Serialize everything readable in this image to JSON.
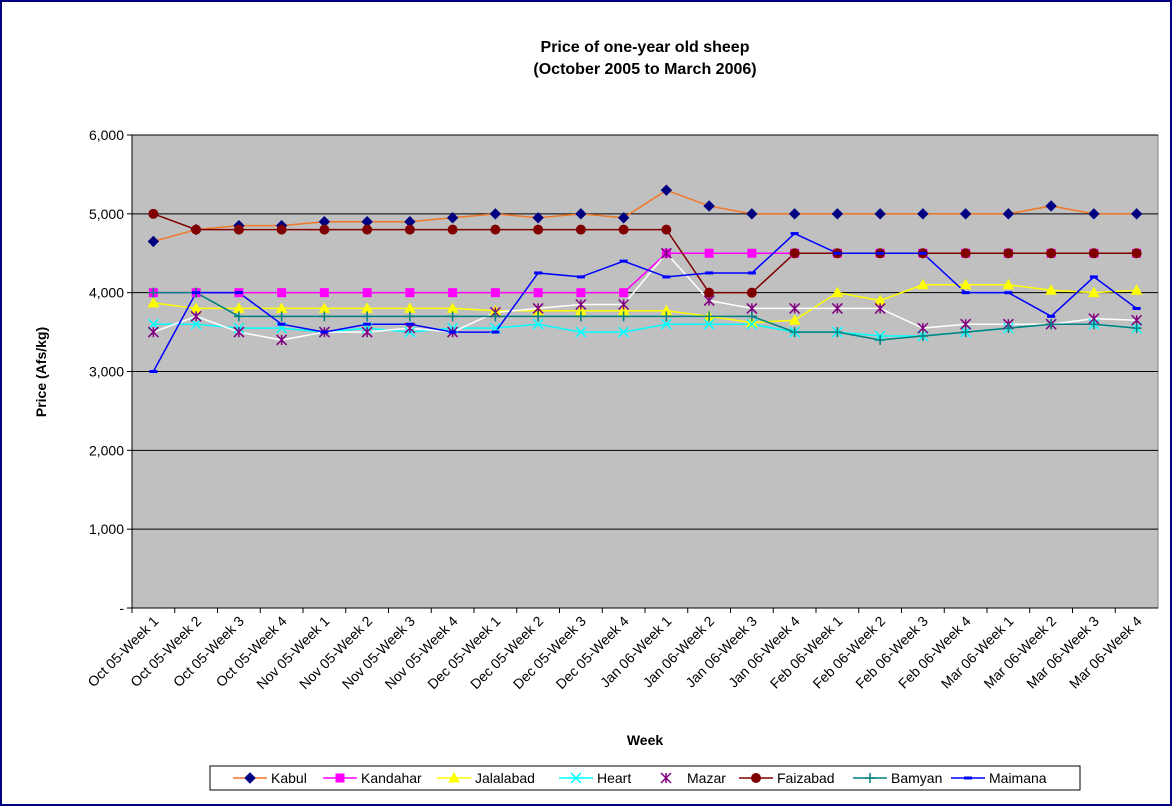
{
  "chart_data": {
    "type": "line",
    "title": "Price of one-year old sheep",
    "subtitle": "(October 2005 to March 2006)",
    "x_label": "Week",
    "y_label": "Price (Afs/kg)",
    "categories": [
      "Oct 05-Week 1",
      "Oct 05-Week 2",
      "Oct 05-Week 3",
      "Oct 05-Week 4",
      "Nov 05-Week 1",
      "Nov 05-Week 2",
      "Nov 05-Week 3",
      "Nov 05-Week 4",
      "Dec 05-Week 1",
      "Dec 05-Week 2",
      "Dec 05-Week 3",
      "Dec 05-Week 4",
      "Jan 06-Week 1",
      "Jan 06-Week 2",
      "Jan 06-Week 3",
      "Jan 06-Week 4",
      "Feb 06-Week 1",
      "Feb 06-Week 2",
      "Feb 06-Week 3",
      "Feb 06-Week 4",
      "Mar 06-Week 1",
      "Mar 06-Week 2",
      "Mar 06-Week 3",
      "Mar 06-Week 4"
    ],
    "series": [
      {
        "name": "Kabul",
        "color": "#f07828",
        "marker_color": "#000080",
        "marker": "diamond",
        "values": [
          4650,
          4800,
          4850,
          4850,
          4900,
          4900,
          4900,
          4950,
          5000,
          4950,
          5000,
          4950,
          5300,
          5100,
          5000,
          5000,
          5000,
          5000,
          5000,
          5000,
          5000,
          5100,
          5000,
          5000
        ]
      },
      {
        "name": "Kandahar",
        "color": "#ff00ff",
        "marker_color": "#ff00ff",
        "marker": "square",
        "values": [
          4000,
          4000,
          4000,
          4000,
          4000,
          4000,
          4000,
          4000,
          4000,
          4000,
          4000,
          4000,
          4500,
          4500,
          4500,
          4500,
          4500,
          4500,
          4500,
          4500,
          4500,
          4500,
          4500,
          4500
        ]
      },
      {
        "name": "Jalalabad",
        "color": "#ffff00",
        "marker_color": "#ffff00",
        "marker": "triangle",
        "values": [
          3870,
          3800,
          3800,
          3800,
          3800,
          3800,
          3800,
          3800,
          3770,
          3770,
          3770,
          3770,
          3770,
          3700,
          3620,
          3650,
          4000,
          3900,
          4100,
          4100,
          4100,
          4030,
          4000,
          4030
        ]
      },
      {
        "name": "Heart",
        "color": "#00ffff",
        "marker_color": "#00ffff",
        "marker": "x",
        "values": [
          3600,
          3600,
          3550,
          3550,
          3500,
          3550,
          3500,
          3550,
          3550,
          3600,
          3500,
          3500,
          3600,
          3600,
          3600,
          3500,
          3500,
          3450,
          3450,
          3500,
          3550,
          3600,
          3600,
          3550
        ]
      },
      {
        "name": "Mazar",
        "color": "#ffffff",
        "marker_color": "#800080",
        "marker": "star",
        "values": [
          3500,
          3700,
          3500,
          3400,
          3500,
          3500,
          3550,
          3500,
          3750,
          3800,
          3850,
          3850,
          4500,
          3900,
          3800,
          3800,
          3800,
          3800,
          3550,
          3600,
          3600,
          3600,
          3670,
          3650
        ]
      },
      {
        "name": "Faizabad",
        "color": "#800000",
        "marker_color": "#800000",
        "marker": "circle",
        "values": [
          5000,
          4800,
          4800,
          4800,
          4800,
          4800,
          4800,
          4800,
          4800,
          4800,
          4800,
          4800,
          4800,
          4000,
          4000,
          4500,
          4500,
          4500,
          4500,
          4500,
          4500,
          4500,
          4500,
          4500
        ]
      },
      {
        "name": "Bamyan",
        "color": "#008080",
        "marker_color": "#008080",
        "marker": "plus",
        "values": [
          4000,
          4000,
          3700,
          3700,
          3700,
          3700,
          3700,
          3700,
          3700,
          3700,
          3700,
          3700,
          3700,
          3700,
          3700,
          3500,
          3500,
          3400,
          3450,
          3500,
          3550,
          3600,
          3600,
          3550
        ]
      },
      {
        "name": "Maimana",
        "color": "#0000ff",
        "marker_color": "#0000ff",
        "marker": "dash",
        "values": [
          3000,
          4000,
          4000,
          3600,
          3500,
          3600,
          3600,
          3500,
          3500,
          4250,
          4200,
          4400,
          4200,
          4250,
          4250,
          4750,
          4500,
          4500,
          4500,
          4000,
          4000,
          3700,
          4200,
          3800
        ]
      }
    ],
    "ylim": [
      0,
      6000
    ],
    "yticks": [
      {
        "value": 0,
        "label": "-"
      },
      {
        "value": 1000,
        "label": "1,000"
      },
      {
        "value": 2000,
        "label": "2,000"
      },
      {
        "value": 3000,
        "label": "3,000"
      },
      {
        "value": 4000,
        "label": "4,000"
      },
      {
        "value": 5000,
        "label": "5,000"
      },
      {
        "value": 6000,
        "label": "6,000"
      }
    ],
    "grid": true,
    "legend": "bottom",
    "plot_background": "#c0c0c0"
  }
}
